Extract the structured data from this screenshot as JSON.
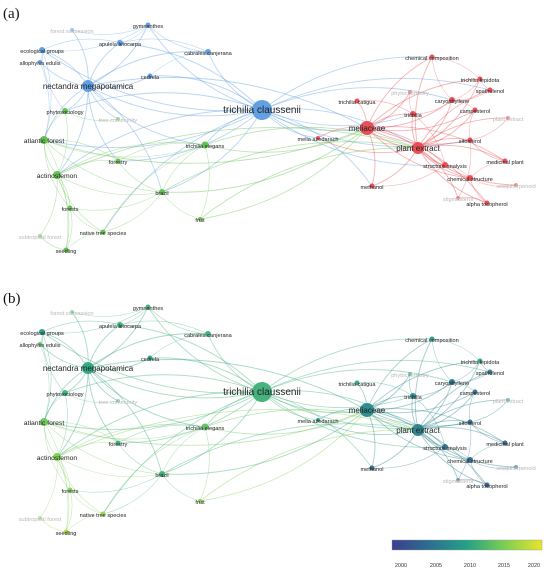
{
  "panels": [
    {
      "label": "(a)",
      "mode": "cluster"
    },
    {
      "label": "(b)",
      "mode": "year"
    }
  ],
  "colorbar": {
    "ticks": [
      "2000",
      "2005",
      "2010",
      "2015",
      "2020"
    ],
    "min": 2000,
    "max": 2021,
    "colors": [
      "#3b3f8f",
      "#2d6f8e",
      "#24a186",
      "#7ccf52",
      "#e8e42a"
    ]
  },
  "clusters": {
    "blue": "#5b9be0",
    "red": "#e8484f",
    "green": "#5fbf4b"
  },
  "nodes": [
    {
      "id": "trichilia claussenii",
      "label": "trichilia claussenii",
      "cluster": "blue",
      "weight": 10,
      "year": 2012
    },
    {
      "id": "nectandra megapotamica",
      "label": "nectandra megapotamica",
      "cluster": "blue",
      "weight": 6,
      "year": 2011
    },
    {
      "id": "ecological groups",
      "label": "ecological groups",
      "cluster": "blue",
      "weight": 3,
      "year": 2010
    },
    {
      "id": "apuleia leiocarpa",
      "label": "apuleia leiocarpa",
      "cluster": "blue",
      "weight": 3,
      "year": 2012
    },
    {
      "id": "gymnanthes",
      "label": "gymnanthes",
      "cluster": "blue",
      "weight": 2.5,
      "year": 2012
    },
    {
      "id": "cabralea canjerana",
      "label": "cabralea canjerana",
      "cluster": "blue",
      "weight": 3,
      "year": 2012
    },
    {
      "id": "cedrela",
      "label": "cedrela",
      "cluster": "blue",
      "weight": 2.5,
      "year": 2011
    },
    {
      "id": "forest succession",
      "label": "forest succession",
      "cluster": "blue",
      "weight": 2,
      "year": 2013,
      "faint": true
    },
    {
      "id": "allophylus edulis",
      "label": "allophylus edulis",
      "cluster": "blue",
      "weight": 2,
      "year": 2014
    },
    {
      "id": "phytosociology",
      "label": "phytosociology",
      "cluster": "green",
      "weight": 3,
      "year": 2012
    },
    {
      "id": "tree community",
      "label": "tree community",
      "cluster": "green",
      "weight": 2,
      "year": 2013,
      "faint": true
    },
    {
      "id": "atlantic forest",
      "label": "atlantic forest",
      "cluster": "green",
      "weight": 4,
      "year": 2015
    },
    {
      "id": "actinostemon",
      "label": "actinostemon",
      "cluster": "green",
      "weight": 4,
      "year": 2016
    },
    {
      "id": "forestry",
      "label": "forestry",
      "cluster": "green",
      "weight": 2.5,
      "year": 2012
    },
    {
      "id": "trichilia elegans",
      "label": "trichilia elegans",
      "cluster": "green",
      "weight": 3.5,
      "year": 2014
    },
    {
      "id": "brazil",
      "label": "brazil",
      "cluster": "green",
      "weight": 3,
      "year": 2012
    },
    {
      "id": "forests",
      "label": "forests",
      "cluster": "green",
      "weight": 2.5,
      "year": 2016
    },
    {
      "id": "native tree species",
      "label": "native tree species",
      "cluster": "green",
      "weight": 2.5,
      "year": 2017
    },
    {
      "id": "fruit",
      "label": "fruit",
      "cluster": "green",
      "weight": 2,
      "year": 2016
    },
    {
      "id": "seedling",
      "label": "seedling",
      "cluster": "green",
      "weight": 2.5,
      "year": 2018
    },
    {
      "id": "subtropical forest",
      "label": "subtropical forest",
      "cluster": "green",
      "weight": 2,
      "year": 2016,
      "faint": true
    },
    {
      "id": "meliaceae",
      "label": "meliaceae",
      "cluster": "red",
      "weight": 7,
      "year": 2008
    },
    {
      "id": "melia azedarach",
      "label": "melia azedarach",
      "cluster": "red",
      "weight": 2,
      "year": 2009
    },
    {
      "id": "trichilia catigua",
      "label": "trichilia catigua",
      "cluster": "red",
      "weight": 2.5,
      "year": 2011
    },
    {
      "id": "chemical composition",
      "label": "chemical composition",
      "cluster": "red",
      "weight": 2.5,
      "year": 2010
    },
    {
      "id": "trichilia lepidota",
      "label": "trichilia lepidota",
      "cluster": "red",
      "weight": 2.5,
      "year": 2011
    },
    {
      "id": "phytochemistry",
      "label": "phytochemistry",
      "cluster": "red",
      "weight": 2,
      "year": 2008,
      "faint": true
    },
    {
      "id": "caryophyllene",
      "label": "caryophyllene",
      "cluster": "red",
      "weight": 3,
      "year": 2006
    },
    {
      "id": "spathulenol",
      "label": "spathulenol",
      "cluster": "red",
      "weight": 2.5,
      "year": 2006
    },
    {
      "id": "trichilia",
      "label": "trichilia",
      "cluster": "red",
      "weight": 3,
      "year": 2007
    },
    {
      "id": "campesterol",
      "label": "campesterol",
      "cluster": "red",
      "weight": 2.5,
      "year": 2005
    },
    {
      "id": "plant extract",
      "label": "plant extract",
      "cluster": "red",
      "weight": 6,
      "year": 2007
    },
    {
      "id": "sitosterol",
      "label": "sitosterol",
      "cluster": "red",
      "weight": 2.5,
      "year": 2005
    },
    {
      "id": "structure analysis",
      "label": "structure analysis",
      "cluster": "red",
      "weight": 3,
      "year": 2005
    },
    {
      "id": "medicinal plant",
      "label": "medicinal plant",
      "cluster": "red",
      "weight": 2.5,
      "year": 2004
    },
    {
      "id": "chemical structure",
      "label": "chemical structure",
      "cluster": "red",
      "weight": 3,
      "year": 2004
    },
    {
      "id": "methanol",
      "label": "methanol",
      "cluster": "red",
      "weight": 2.5,
      "year": 2004
    },
    {
      "id": "alpha tocopherol",
      "label": "alpha tocopherol",
      "cluster": "red",
      "weight": 2.5,
      "year": 2003
    },
    {
      "id": "stigmasterol",
      "label": "stigmasterol",
      "cluster": "red",
      "weight": 2,
      "year": 2004,
      "faint": true
    },
    {
      "id": "sesquiterpenoid",
      "label": "sesquiterpenoid",
      "cluster": "red",
      "weight": 2,
      "year": 2003,
      "faint": true
    },
    {
      "id": "plant extract 2",
      "label": "plant extract",
      "cluster": "red",
      "weight": 2,
      "year": 2008,
      "faint": true
    }
  ],
  "links": [
    [
      "trichilia claussenii",
      "nectandra megapotamica"
    ],
    [
      "trichilia claussenii",
      "meliaceae"
    ],
    [
      "trichilia claussenii",
      "plant extract"
    ],
    [
      "trichilia claussenii",
      "trichilia elegans"
    ],
    [
      "trichilia claussenii",
      "cabralea canjerana"
    ],
    [
      "trichilia claussenii",
      "cedrela"
    ],
    [
      "trichilia claussenii",
      "atlantic forest"
    ],
    [
      "trichilia claussenii",
      "actinostemon"
    ],
    [
      "trichilia claussenii",
      "brazil"
    ],
    [
      "trichilia claussenii",
      "phytosociology"
    ],
    [
      "trichilia claussenii",
      "gymnanthes"
    ],
    [
      "trichilia claussenii",
      "apuleia leiocarpa"
    ],
    [
      "trichilia claussenii",
      "ecological groups"
    ],
    [
      "trichilia claussenii",
      "trichilia"
    ],
    [
      "trichilia claussenii",
      "caryophyllene"
    ],
    [
      "trichilia claussenii",
      "melia azedarach"
    ],
    [
      "trichilia claussenii",
      "methanol"
    ],
    [
      "trichilia claussenii",
      "structure analysis"
    ],
    [
      "trichilia claussenii",
      "forestry"
    ],
    [
      "trichilia claussenii",
      "native tree species"
    ],
    [
      "trichilia claussenii",
      "chemical composition"
    ],
    [
      "trichilia claussenii",
      "sitosterol"
    ],
    [
      "trichilia claussenii",
      "spathulenol"
    ],
    [
      "nectandra megapotamica",
      "ecological groups"
    ],
    [
      "nectandra megapotamica",
      "apuleia leiocarpa"
    ],
    [
      "nectandra megapotamica",
      "gymnanthes"
    ],
    [
      "nectandra megapotamica",
      "cabralea canjerana"
    ],
    [
      "nectandra megapotamica",
      "cedrela"
    ],
    [
      "nectandra megapotamica",
      "phytosociology"
    ],
    [
      "nectandra megapotamica",
      "atlantic forest"
    ],
    [
      "nectandra megapotamica",
      "actinostemon"
    ],
    [
      "nectandra megapotamica",
      "forestry"
    ],
    [
      "nectandra megapotamica",
      "allophylus edulis"
    ],
    [
      "nectandra megapotamica",
      "forest succession"
    ],
    [
      "nectandra megapotamica",
      "brazil"
    ],
    [
      "nectandra megapotamica",
      "trichilia elegans"
    ],
    [
      "nectandra megapotamica",
      "meliaceae"
    ],
    [
      "nectandra megapotamica",
      "tree community"
    ],
    [
      "ecological groups",
      "apuleia leiocarpa"
    ],
    [
      "ecological groups",
      "gymnanthes"
    ],
    [
      "ecological groups",
      "allophylus edulis"
    ],
    [
      "ecological groups",
      "phytosociology"
    ],
    [
      "ecological groups",
      "atlantic forest"
    ],
    [
      "apuleia leiocarpa",
      "gymnanthes"
    ],
    [
      "apuleia leiocarpa",
      "cabralea canjerana"
    ],
    [
      "gymnanthes",
      "cabralea canjerana"
    ],
    [
      "cedrela",
      "cabralea canjerana"
    ],
    [
      "forest succession",
      "gymnanthes"
    ],
    [
      "allophylus edulis",
      "atlantic forest"
    ],
    [
      "phytosociology",
      "atlantic forest"
    ],
    [
      "phytosociology",
      "actinostemon"
    ],
    [
      "atlantic forest",
      "actinostemon"
    ],
    [
      "atlantic forest",
      "forestry"
    ],
    [
      "atlantic forest",
      "forests"
    ],
    [
      "atlantic forest",
      "seedling"
    ],
    [
      "atlantic forest",
      "brazil"
    ],
    [
      "actinostemon",
      "forests"
    ],
    [
      "actinostemon",
      "native tree species"
    ],
    [
      "actinostemon",
      "seedling"
    ],
    [
      "actinostemon",
      "brazil"
    ],
    [
      "actinostemon",
      "forestry"
    ],
    [
      "forestry",
      "brazil"
    ],
    [
      "forestry",
      "trichilia elegans"
    ],
    [
      "trichilia elegans",
      "brazil"
    ],
    [
      "trichilia elegans",
      "fruit"
    ],
    [
      "trichilia elegans",
      "meliaceae"
    ],
    [
      "trichilia elegans",
      "plant extract"
    ],
    [
      "trichilia elegans",
      "actinostemon"
    ],
    [
      "trichilia elegans",
      "atlantic forest"
    ],
    [
      "trichilia elegans",
      "native tree species"
    ],
    [
      "brazil",
      "native tree species"
    ],
    [
      "brazil",
      "fruit"
    ],
    [
      "brazil",
      "forests"
    ],
    [
      "forests",
      "native tree species"
    ],
    [
      "forests",
      "seedling"
    ],
    [
      "native tree species",
      "seedling"
    ],
    [
      "seedling",
      "subtropical forest"
    ],
    [
      "subtropical forest",
      "actinostemon"
    ],
    [
      "tree community",
      "phytosociology"
    ],
    [
      "fruit",
      "meliaceae"
    ],
    [
      "fruit",
      "plant extract"
    ],
    [
      "brazil",
      "meliaceae"
    ],
    [
      "brazil",
      "plant extract"
    ],
    [
      "atlantic forest",
      "meliaceae"
    ],
    [
      "actinostemon",
      "plant extract"
    ],
    [
      "meliaceae",
      "plant extract"
    ],
    [
      "meliaceae",
      "trichilia"
    ],
    [
      "meliaceae",
      "trichilia catigua"
    ],
    [
      "meliaceae",
      "chemical composition"
    ],
    [
      "meliaceae",
      "melia azedarach"
    ],
    [
      "meliaceae",
      "methanol"
    ],
    [
      "meliaceae",
      "caryophyllene"
    ],
    [
      "meliaceae",
      "structure analysis"
    ],
    [
      "meliaceae",
      "sitosterol"
    ],
    [
      "meliaceae",
      "medicinal plant"
    ],
    [
      "meliaceae",
      "chemical structure"
    ],
    [
      "meliaceae",
      "trichilia lepidota"
    ],
    [
      "meliaceae",
      "phytochemistry"
    ],
    [
      "meliaceae",
      "alpha tocopherol"
    ],
    [
      "meliaceae",
      "campesterol"
    ],
    [
      "plant extract",
      "trichilia"
    ],
    [
      "plant extract",
      "caryophyllene"
    ],
    [
      "plant extract",
      "spathulenol"
    ],
    [
      "plant extract",
      "campesterol"
    ],
    [
      "plant extract",
      "sitosterol"
    ],
    [
      "plant extract",
      "structure analysis"
    ],
    [
      "plant extract",
      "medicinal plant"
    ],
    [
      "plant extract",
      "chemical structure"
    ],
    [
      "plant extract",
      "methanol"
    ],
    [
      "plant extract",
      "alpha tocopherol"
    ],
    [
      "plant extract",
      "stigmasterol"
    ],
    [
      "plant extract",
      "sesquiterpenoid"
    ],
    [
      "plant extract",
      "plant extract 2"
    ],
    [
      "plant extract",
      "trichilia lepidota"
    ],
    [
      "plant extract",
      "chemical composition"
    ],
    [
      "trichilia",
      "caryophyllene"
    ],
    [
      "trichilia",
      "structure analysis"
    ],
    [
      "caryophyllene",
      "spathulenol"
    ],
    [
      "caryophyllene",
      "campesterol"
    ],
    [
      "caryophyllene",
      "trichilia lepidota"
    ],
    [
      "spathulenol",
      "trichilia lepidota"
    ],
    [
      "campesterol",
      "sitosterol"
    ],
    [
      "sitosterol",
      "stigmasterol"
    ],
    [
      "sitosterol",
      "medicinal plant"
    ],
    [
      "structure analysis",
      "chemical structure"
    ],
    [
      "chemical structure",
      "alpha tocopherol"
    ],
    [
      "chemical structure",
      "medicinal plant"
    ],
    [
      "alpha tocopherol",
      "stigmasterol"
    ],
    [
      "sesquiterpenoid",
      "chemical structure"
    ],
    [
      "methanol",
      "structure analysis"
    ],
    [
      "chemical composition",
      "trichilia lepidota"
    ],
    [
      "chemical composition",
      "caryophyllene"
    ],
    [
      "trichilia catigua",
      "trichilia"
    ],
    [
      "phytochemistry",
      "trichilia"
    ],
    [
      "plant extract 2",
      "sitosterol"
    ],
    [
      "melia azedarach",
      "plant extract"
    ]
  ]
}
